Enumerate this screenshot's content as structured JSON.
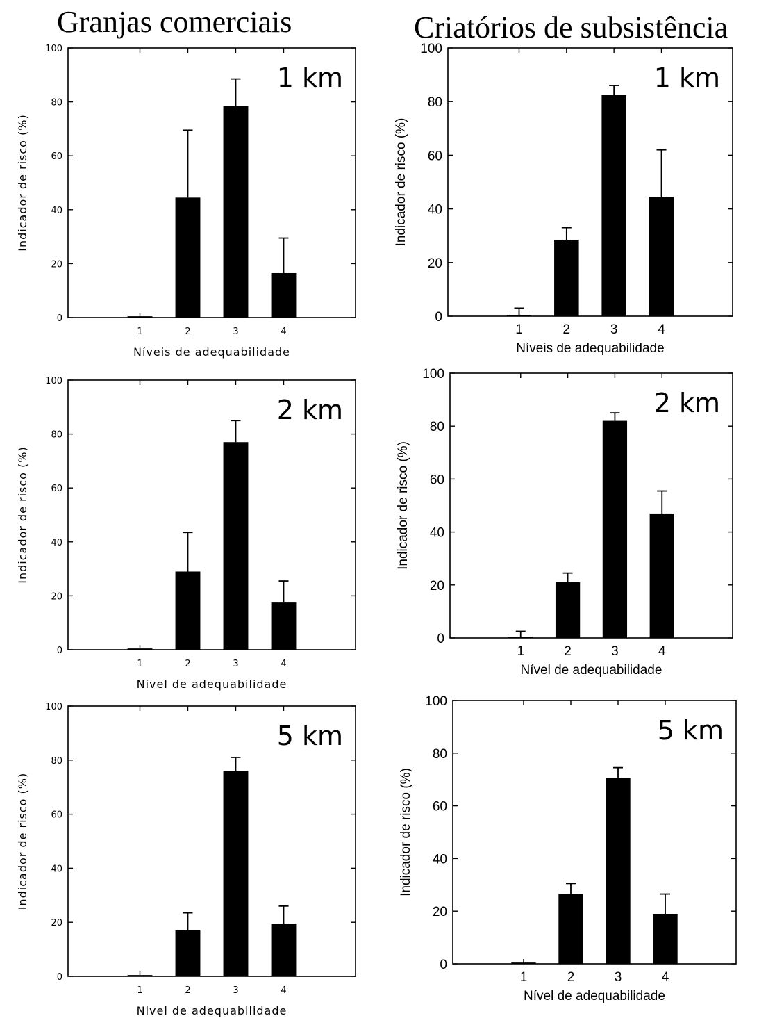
{
  "titles": {
    "left": "Granjas comerciais",
    "right": "Criatórios de subsistência"
  },
  "chart_data": [
    {
      "type": "bar",
      "column": "left",
      "label": "1 km",
      "categories": [
        "1",
        "2",
        "3",
        "4"
      ],
      "values": [
        0,
        44.5,
        78.5,
        16.5
      ],
      "errors": [
        0,
        25,
        10,
        13
      ],
      "xlabel": "Níveis de adequabilidade",
      "ylabel": "Indicador de risco (%)",
      "ylim": [
        0,
        100
      ],
      "yticks": [
        "0",
        "20",
        "40",
        "60",
        "80",
        "100"
      ]
    },
    {
      "type": "bar",
      "column": "right",
      "label": "1 km",
      "categories": [
        "1",
        "2",
        "3",
        "4"
      ],
      "values": [
        0,
        28.5,
        82.5,
        44.5
      ],
      "errors": [
        3,
        4.5,
        3.5,
        17.5
      ],
      "xlabel": "Níveis de adequabilidade",
      "ylabel": "Indicador de risco (%)",
      "ylim": [
        0,
        100
      ],
      "yticks": [
        "0",
        "20",
        "40",
        "60",
        "80",
        "100"
      ]
    },
    {
      "type": "bar",
      "column": "left",
      "label": "2 km",
      "categories": [
        "1",
        "2",
        "3",
        "4"
      ],
      "values": [
        0,
        29,
        77,
        17.5
      ],
      "errors": [
        0,
        14.5,
        8,
        8
      ],
      "xlabel": "Nivel de adequabilidade",
      "ylabel": "Indicador de risco (%)",
      "ylim": [
        0,
        100
      ],
      "yticks": [
        "0",
        "20",
        "40",
        "60",
        "80",
        "100"
      ]
    },
    {
      "type": "bar",
      "column": "right",
      "label": "2 km",
      "categories": [
        "1",
        "2",
        "3",
        "4"
      ],
      "values": [
        0,
        21,
        82,
        47
      ],
      "errors": [
        2.5,
        3.5,
        3,
        8.5
      ],
      "xlabel": "Nível de adequabilidade",
      "ylabel": "Indicador de risco (%)",
      "ylim": [
        0,
        100
      ],
      "yticks": [
        "0",
        "20",
        "40",
        "60",
        "80",
        "100"
      ]
    },
    {
      "type": "bar",
      "column": "left",
      "label": "5 km",
      "categories": [
        "1",
        "2",
        "3",
        "4"
      ],
      "values": [
        0,
        17,
        76,
        19.5
      ],
      "errors": [
        0,
        6.5,
        5,
        6.5
      ],
      "xlabel": "Nivel de adequabilidade",
      "ylabel": "Indicador de risco (%)",
      "ylim": [
        0,
        100
      ],
      "yticks": [
        "0",
        "20",
        "40",
        "60",
        "80",
        "100"
      ]
    },
    {
      "type": "bar",
      "column": "right",
      "label": "5 km",
      "categories": [
        "1",
        "2",
        "3",
        "4"
      ],
      "values": [
        0,
        26.5,
        70.5,
        19
      ],
      "errors": [
        0,
        4,
        4,
        7.5
      ],
      "xlabel": "Nível de adequabilidade",
      "ylabel": "Indicador de risco (%)",
      "ylim": [
        0,
        100
      ],
      "yticks": [
        "0",
        "20",
        "40",
        "60",
        "80",
        "100"
      ]
    }
  ]
}
